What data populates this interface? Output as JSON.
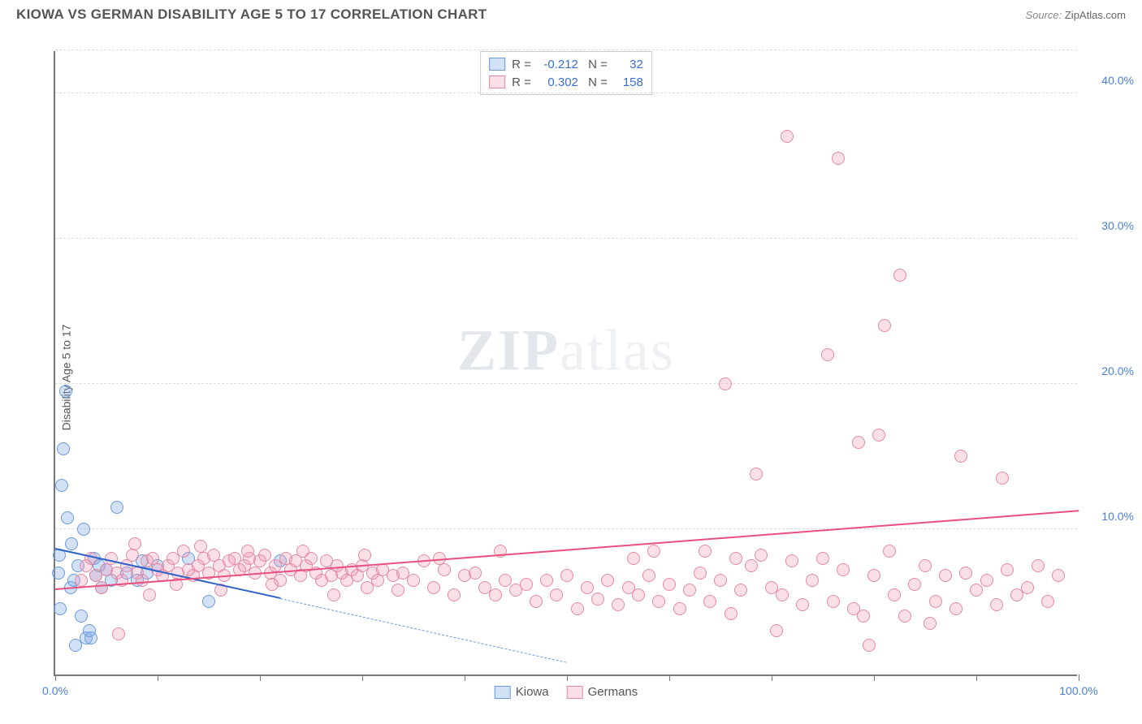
{
  "header": {
    "title": "KIOWA VS GERMAN DISABILITY AGE 5 TO 17 CORRELATION CHART",
    "source_prefix": "Source: ",
    "source": "ZipAtlas.com"
  },
  "watermark": {
    "zip": "ZIP",
    "atlas": "atlas"
  },
  "chart": {
    "type": "scatter",
    "ylabel": "Disability Age 5 to 17",
    "background_color": "#ffffff",
    "grid_color": "#dddddd",
    "axis_color": "#777777",
    "label_color": "#4a7fd8",
    "xlim": [
      0,
      100
    ],
    "ylim": [
      0,
      43
    ],
    "xtick_step": 10,
    "xtick_labels": {
      "0": "0.0%",
      "100": "100.0%"
    },
    "ytick_step": 10,
    "ytick_labels": {
      "10": "10.0%",
      "20": "20.0%",
      "30": "30.0%",
      "40": "40.0%"
    },
    "marker_radius": 8,
    "marker_border_width": 1.2,
    "series": [
      {
        "name": "Kiowa",
        "color_fill": "rgba(130,170,230,0.35)",
        "color_stroke": "#6a9be0",
        "r": -0.212,
        "n": 32,
        "trend": {
          "x1": 0,
          "y1": 8.6,
          "x2": 22,
          "y2": 5.2,
          "color": "#2e63c9",
          "style": "solid"
        },
        "trend_ext": {
          "x1": 22,
          "y1": 5.2,
          "x2": 50,
          "y2": 0.8,
          "color": "#6a9be0",
          "style": "dashed"
        },
        "points": [
          [
            0.3,
            7.0
          ],
          [
            0.4,
            8.2
          ],
          [
            0.5,
            4.5
          ],
          [
            0.6,
            13.0
          ],
          [
            0.8,
            15.5
          ],
          [
            1.0,
            19.5
          ],
          [
            1.2,
            10.8
          ],
          [
            1.5,
            6.0
          ],
          [
            1.6,
            9.0
          ],
          [
            1.8,
            6.5
          ],
          [
            2.0,
            2.0
          ],
          [
            2.2,
            7.5
          ],
          [
            2.5,
            4.0
          ],
          [
            2.8,
            10.0
          ],
          [
            3.0,
            2.5
          ],
          [
            3.3,
            3.0
          ],
          [
            3.5,
            2.5
          ],
          [
            3.8,
            8.0
          ],
          [
            4.0,
            6.8
          ],
          [
            4.3,
            7.5
          ],
          [
            4.5,
            6.0
          ],
          [
            5.0,
            7.2
          ],
          [
            5.5,
            6.5
          ],
          [
            6.0,
            11.5
          ],
          [
            7.0,
            7.0
          ],
          [
            8.0,
            6.5
          ],
          [
            8.5,
            7.8
          ],
          [
            9.0,
            7.0
          ],
          [
            10.0,
            7.5
          ],
          [
            13.0,
            8.0
          ],
          [
            15.0,
            5.0
          ],
          [
            22.0,
            7.8
          ]
        ]
      },
      {
        "name": "Germans",
        "color_fill": "rgba(240,150,175,0.30)",
        "color_stroke": "#e38aa3",
        "r": 0.302,
        "n": 158,
        "trend": {
          "x1": 0,
          "y1": 5.8,
          "x2": 100,
          "y2": 11.2,
          "color": "#e84f7d",
          "style": "solid"
        },
        "points": [
          [
            3,
            7.5
          ],
          [
            4,
            6.8
          ],
          [
            5,
            7.2
          ],
          [
            5.5,
            8.0
          ],
          [
            6,
            7.0
          ],
          [
            6.5,
            6.5
          ],
          [
            7,
            7.5
          ],
          [
            7.5,
            8.2
          ],
          [
            8,
            7.0
          ],
          [
            8.5,
            6.5
          ],
          [
            9,
            7.8
          ],
          [
            9.5,
            8.0
          ],
          [
            10,
            7.2
          ],
          [
            10.5,
            6.8
          ],
          [
            11,
            7.5
          ],
          [
            11.5,
            8.0
          ],
          [
            12,
            7.0
          ],
          [
            12.5,
            8.5
          ],
          [
            13,
            7.2
          ],
          [
            13.5,
            6.8
          ],
          [
            14,
            7.5
          ],
          [
            14.5,
            8.0
          ],
          [
            15,
            7.0
          ],
          [
            15.5,
            8.2
          ],
          [
            16,
            7.5
          ],
          [
            16.5,
            6.8
          ],
          [
            17,
            7.8
          ],
          [
            17.5,
            8.0
          ],
          [
            18,
            7.2
          ],
          [
            18.5,
            7.5
          ],
          [
            19,
            8.0
          ],
          [
            19.5,
            7.0
          ],
          [
            20,
            7.8
          ],
          [
            20.5,
            8.2
          ],
          [
            21,
            7.0
          ],
          [
            21.5,
            7.5
          ],
          [
            22,
            6.5
          ],
          [
            22.5,
            8.0
          ],
          [
            23,
            7.2
          ],
          [
            23.5,
            7.8
          ],
          [
            24,
            6.8
          ],
          [
            24.5,
            7.5
          ],
          [
            25,
            8.0
          ],
          [
            25.5,
            7.0
          ],
          [
            26,
            6.5
          ],
          [
            26.5,
            7.8
          ],
          [
            27,
            6.8
          ],
          [
            27.5,
            7.5
          ],
          [
            28,
            7.0
          ],
          [
            28.5,
            6.5
          ],
          [
            29,
            7.2
          ],
          [
            29.5,
            6.8
          ],
          [
            30,
            7.5
          ],
          [
            30.5,
            6.0
          ],
          [
            31,
            7.0
          ],
          [
            31.5,
            6.5
          ],
          [
            32,
            7.2
          ],
          [
            33,
            6.8
          ],
          [
            34,
            7.0
          ],
          [
            35,
            6.5
          ],
          [
            36,
            7.8
          ],
          [
            37,
            6.0
          ],
          [
            38,
            7.2
          ],
          [
            39,
            5.5
          ],
          [
            40,
            6.8
          ],
          [
            41,
            7.0
          ],
          [
            42,
            6.0
          ],
          [
            43,
            5.5
          ],
          [
            43.5,
            8.5
          ],
          [
            44,
            6.5
          ],
          [
            45,
            5.8
          ],
          [
            46,
            6.2
          ],
          [
            47,
            5.0
          ],
          [
            48,
            6.5
          ],
          [
            49,
            5.5
          ],
          [
            50,
            6.8
          ],
          [
            51,
            4.5
          ],
          [
            52,
            6.0
          ],
          [
            53,
            5.2
          ],
          [
            54,
            6.5
          ],
          [
            55,
            4.8
          ],
          [
            56,
            6.0
          ],
          [
            56.5,
            8.0
          ],
          [
            57,
            5.5
          ],
          [
            58,
            6.8
          ],
          [
            58.5,
            8.5
          ],
          [
            59,
            5.0
          ],
          [
            60,
            6.2
          ],
          [
            61,
            4.5
          ],
          [
            62,
            5.8
          ],
          [
            63,
            7.0
          ],
          [
            63.5,
            8.5
          ],
          [
            64,
            5.0
          ],
          [
            65,
            6.5
          ],
          [
            65.5,
            20.0
          ],
          [
            66,
            4.2
          ],
          [
            66.5,
            8.0
          ],
          [
            67,
            5.8
          ],
          [
            68,
            7.5
          ],
          [
            68.5,
            13.8
          ],
          [
            69,
            8.2
          ],
          [
            70,
            6.0
          ],
          [
            70.5,
            3.0
          ],
          [
            71,
            5.5
          ],
          [
            71.5,
            37.0
          ],
          [
            72,
            7.8
          ],
          [
            73,
            4.8
          ],
          [
            74,
            6.5
          ],
          [
            75,
            8.0
          ],
          [
            75.5,
            22.0
          ],
          [
            76,
            5.0
          ],
          [
            76.5,
            35.5
          ],
          [
            77,
            7.2
          ],
          [
            78,
            4.5
          ],
          [
            78.5,
            16.0
          ],
          [
            79,
            4.0
          ],
          [
            79.5,
            2.0
          ],
          [
            80,
            6.8
          ],
          [
            80.5,
            16.5
          ],
          [
            81,
            24.0
          ],
          [
            81.5,
            8.5
          ],
          [
            82,
            5.5
          ],
          [
            82.5,
            27.5
          ],
          [
            83,
            4.0
          ],
          [
            84,
            6.2
          ],
          [
            85,
            7.5
          ],
          [
            85.5,
            3.5
          ],
          [
            86,
            5.0
          ],
          [
            87,
            6.8
          ],
          [
            88,
            4.5
          ],
          [
            88.5,
            15.0
          ],
          [
            89,
            7.0
          ],
          [
            90,
            5.8
          ],
          [
            91,
            6.5
          ],
          [
            92,
            4.8
          ],
          [
            92.5,
            13.5
          ],
          [
            93,
            7.2
          ],
          [
            94,
            5.5
          ],
          [
            95,
            6.0
          ],
          [
            96,
            7.5
          ],
          [
            97,
            5.0
          ],
          [
            98,
            6.8
          ],
          [
            2.5,
            6.5
          ],
          [
            3.5,
            8.0
          ],
          [
            4.5,
            6.0
          ],
          [
            6.2,
            2.8
          ],
          [
            7.8,
            9.0
          ],
          [
            9.2,
            5.5
          ],
          [
            11.8,
            6.2
          ],
          [
            14.2,
            8.8
          ],
          [
            16.2,
            5.8
          ],
          [
            18.8,
            8.5
          ],
          [
            21.2,
            6.2
          ],
          [
            24.2,
            8.5
          ],
          [
            27.2,
            5.5
          ],
          [
            30.2,
            8.2
          ],
          [
            33.5,
            5.8
          ],
          [
            37.5,
            8.0
          ]
        ]
      }
    ],
    "legend_bottom": [
      {
        "label": "Kiowa",
        "fill": "rgba(130,170,230,0.35)",
        "stroke": "#6a9be0"
      },
      {
        "label": "Germans",
        "fill": "rgba(240,150,175,0.30)",
        "stroke": "#e38aa3"
      }
    ]
  }
}
